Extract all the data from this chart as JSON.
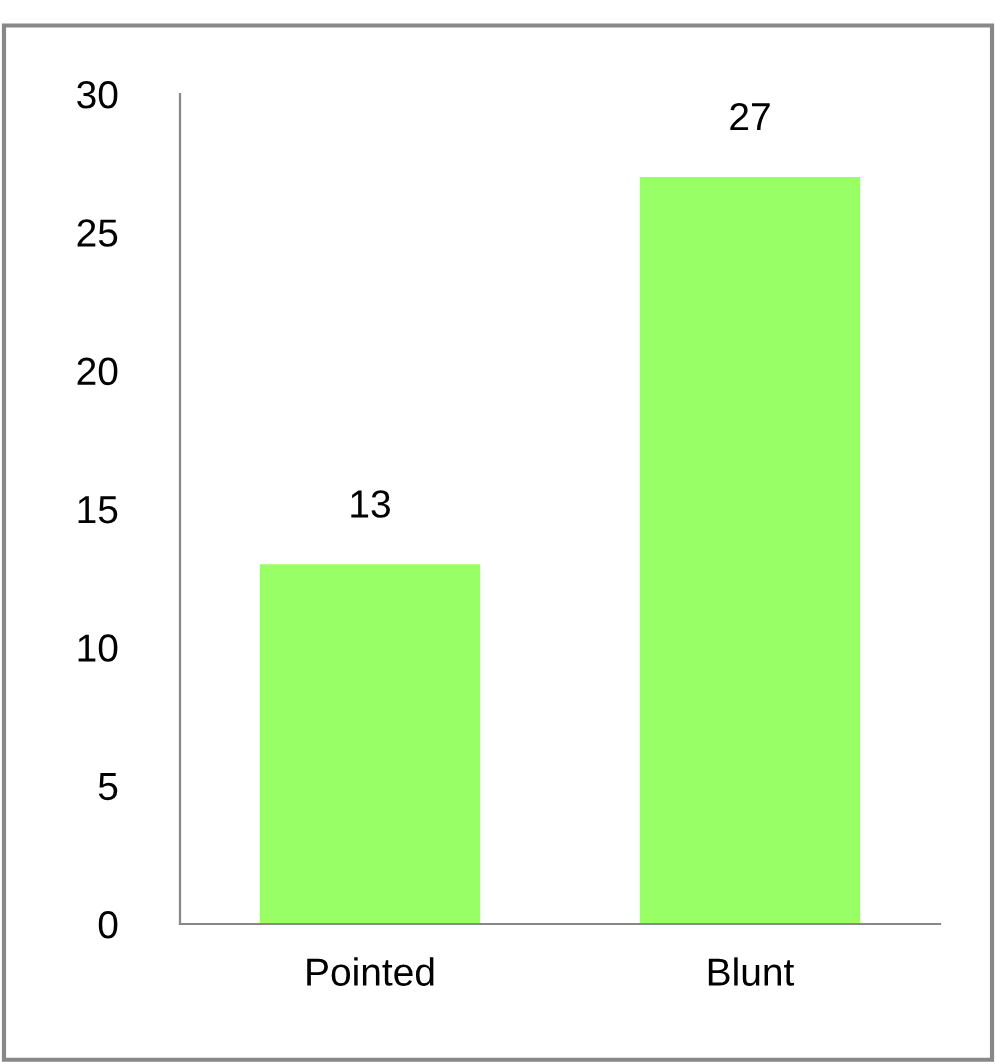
{
  "chart_data": {
    "type": "bar",
    "categories": [
      "Pointed",
      "Blunt"
    ],
    "values": [
      13,
      27
    ],
    "color": "#99ff66",
    "ylim": [
      0,
      30
    ],
    "yticks": [
      0,
      5,
      10,
      15,
      20,
      25,
      30
    ],
    "data_labels": true,
    "grid": false
  }
}
